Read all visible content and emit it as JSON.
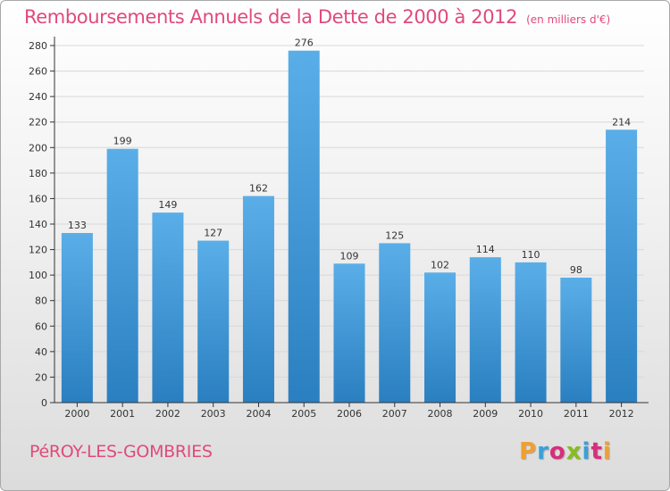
{
  "header": {
    "title": "Remboursements Annuels de la Dette de 2000 à 2012",
    "unit": "(en milliers d'€)"
  },
  "footer": {
    "place": "PéROY-LES-GOMBRIES",
    "logo": "Proxiti",
    "logo_letters": [
      {
        "ch": "P",
        "color": "#f0a030"
      },
      {
        "ch": "r",
        "color": "#3aa0d8"
      },
      {
        "ch": "o",
        "color": "#d82f7a"
      },
      {
        "ch": "x",
        "color": "#88bb22"
      },
      {
        "ch": "i",
        "color": "#3aa0d8"
      },
      {
        "ch": "t",
        "color": "#d82f7a"
      },
      {
        "ch": "i",
        "color": "#f0a030"
      }
    ]
  },
  "chart_data": {
    "type": "bar",
    "title": "Remboursements Annuels de la Dette de 2000 à 2012",
    "subtitle": "(en milliers d'€)",
    "categories": [
      "2000",
      "2001",
      "2002",
      "2003",
      "2004",
      "2005",
      "2006",
      "2007",
      "2008",
      "2009",
      "2010",
      "2011",
      "2012"
    ],
    "values": [
      133,
      199,
      149,
      127,
      162,
      276,
      109,
      125,
      102,
      114,
      110,
      98,
      214
    ],
    "ylim": [
      0,
      280
    ],
    "yticks": [
      0,
      20,
      40,
      60,
      80,
      100,
      120,
      140,
      160,
      180,
      200,
      220,
      240,
      260,
      280
    ],
    "grid": true,
    "colors": {
      "bar_light": "#5aaee8",
      "bar_dark": "#2a7fc0",
      "grid": "#d8d8d8",
      "axis": "#333333"
    }
  }
}
